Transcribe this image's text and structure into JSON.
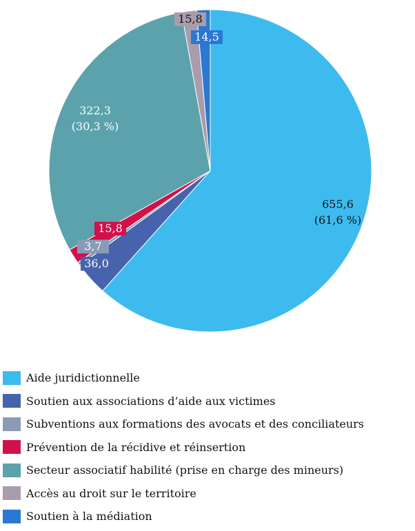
{
  "chart_data": {
    "type": "pie",
    "legend_position": "bottom",
    "slices": [
      {
        "label": "Aide juridictionnelle",
        "value": 655.6,
        "display": "655,6",
        "percent": "(61,6 %)",
        "color": "#3DBBEF",
        "label_color": "#111111",
        "label_bg": ""
      },
      {
        "label": "Soutien aux associations d’aide aux victimes",
        "value": 36.0,
        "display": "36,0",
        "percent": "",
        "color": "#4763AD",
        "label_color": "#ffffff",
        "label_bg": "#4763AD"
      },
      {
        "label": "Subventions aux formations des avocats et des conciliateurs",
        "value": 3.7,
        "display": "3,7",
        "percent": "",
        "color": "#8A9BB5",
        "label_color": "#ffffff",
        "label_bg": "#8A9BB5"
      },
      {
        "label": "Prévention de la récidive et réinsertion",
        "value": 15.8,
        "display": "15,8",
        "percent": "",
        "color": "#D0124A",
        "label_color": "#ffffff",
        "label_bg": "#D0124A"
      },
      {
        "label": "Secteur associatif habilité (prise en charge des mineurs)",
        "value": 322.3,
        "display": "322,3",
        "percent": "(30,3 %)",
        "color": "#5BA2AC",
        "label_color": "#ffffff",
        "label_bg": ""
      },
      {
        "label": "Accès au droit sur le territoire",
        "value": 15.8,
        "display": "15,8",
        "percent": "",
        "color": "#A99CAD",
        "label_color": "#111111",
        "label_bg": "#A99CAD"
      },
      {
        "label": "Soutien à la médiation",
        "value": 14.5,
        "display": "14,5",
        "percent": "",
        "color": "#2A78D2",
        "label_color": "#ffffff",
        "label_bg": "#2A78D2"
      }
    ]
  }
}
